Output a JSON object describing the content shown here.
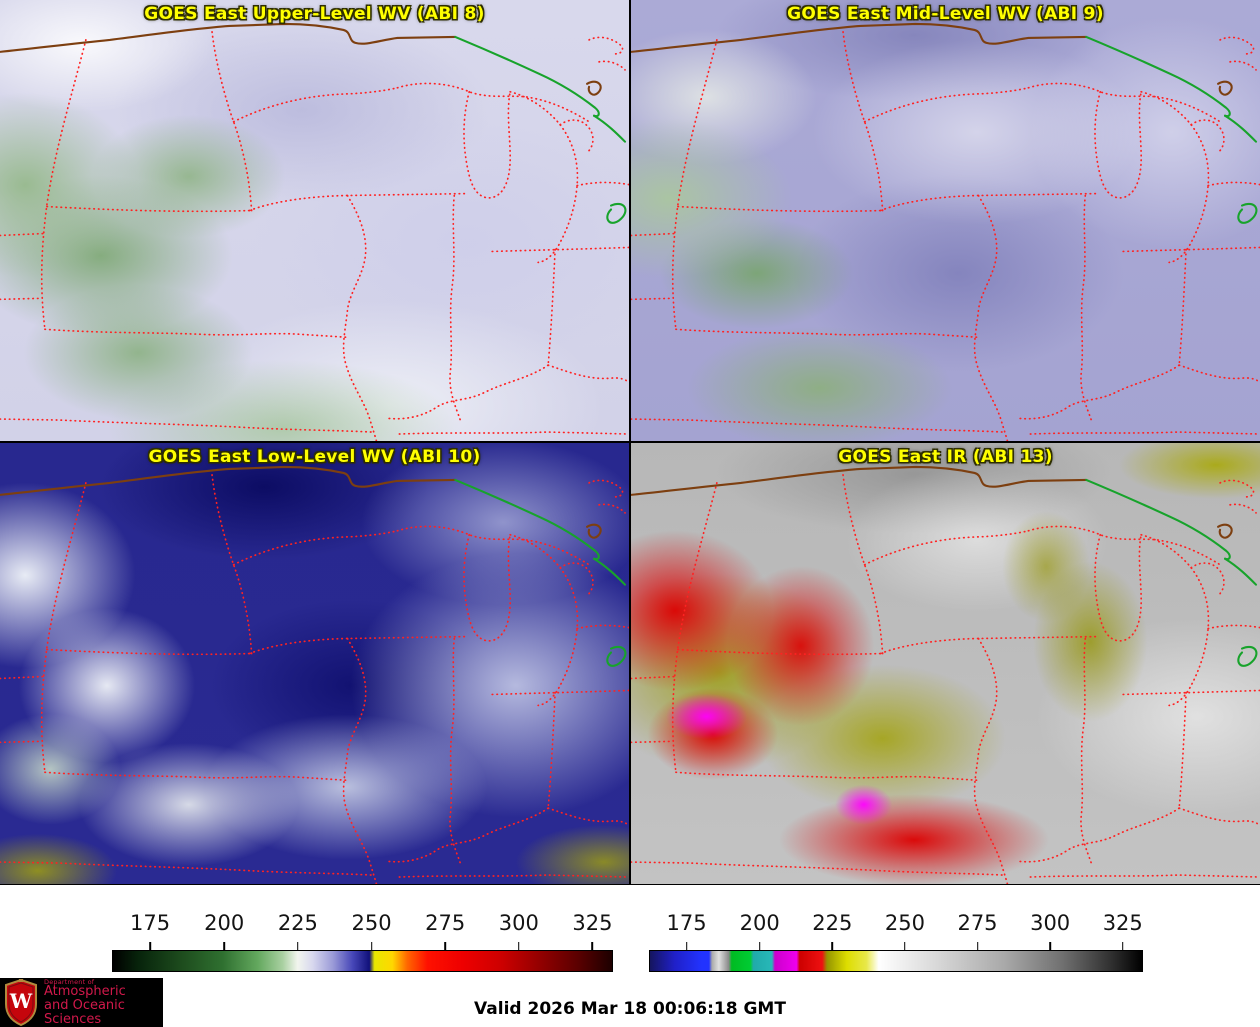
{
  "panels": [
    {
      "title": "GOES East Upper-Level WV (ABI 8)"
    },
    {
      "title": "GOES East Mid-Level WV (ABI 9)"
    },
    {
      "title": "GOES East Low-Level WV (ABI 10)"
    },
    {
      "title": "GOES East IR (ABI 13)"
    }
  ],
  "style": {
    "panel_title_color": "#ffff00",
    "state_border_color": "#ff2222",
    "us_canada_border_color": "#7d3f10",
    "canada_shoreline_color": "#17a32b"
  },
  "colorbars": [
    {
      "name": "wv-brightness-temperature-scale",
      "ticks": [
        "175",
        "200",
        "225",
        "250",
        "275",
        "300",
        "325"
      ],
      "tick_positions_pct": [
        7.6,
        22.4,
        37.1,
        51.8,
        66.5,
        81.2,
        95.9
      ],
      "color_sequence": [
        "black",
        "dark-green",
        "green",
        "white",
        "lavender",
        "blue",
        "navy",
        "yellow",
        "orange",
        "red",
        "dark-red",
        "near-black-red"
      ]
    },
    {
      "name": "ir-brightness-temperature-scale",
      "ticks": [
        "175",
        "200",
        "225",
        "250",
        "275",
        "300",
        "325"
      ],
      "tick_positions_pct": [
        7.6,
        22.4,
        37.1,
        51.8,
        66.5,
        81.2,
        95.9
      ],
      "color_sequence": [
        "navy",
        "blue",
        "gray",
        "green",
        "teal",
        "magenta",
        "red",
        "olive",
        "yellow",
        "white",
        "gray",
        "black"
      ]
    }
  ],
  "footer": {
    "valid_text": "Valid 2026 Mar 18 00:06:18 GMT",
    "logo": {
      "department_line": "Department of",
      "name_line1": "Atmospheric",
      "name_line2": "and Oceanic Sciences",
      "crest_letter": "W"
    }
  }
}
